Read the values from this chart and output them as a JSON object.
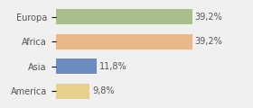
{
  "categories": [
    "Europa",
    "Africa",
    "Asia",
    "America"
  ],
  "values": [
    39.2,
    39.2,
    11.8,
    9.8
  ],
  "labels": [
    "39,2%",
    "39,2%",
    "11,8%",
    "9,8%"
  ],
  "bar_colors": [
    "#a8be8c",
    "#e8b88a",
    "#6b8cbe",
    "#e8d08a"
  ],
  "background_color": "#f0f0f0",
  "xlim": [
    0,
    48
  ],
  "bar_height": 0.62,
  "label_fontsize": 7.0,
  "category_fontsize": 7.0,
  "text_color": "#555555"
}
